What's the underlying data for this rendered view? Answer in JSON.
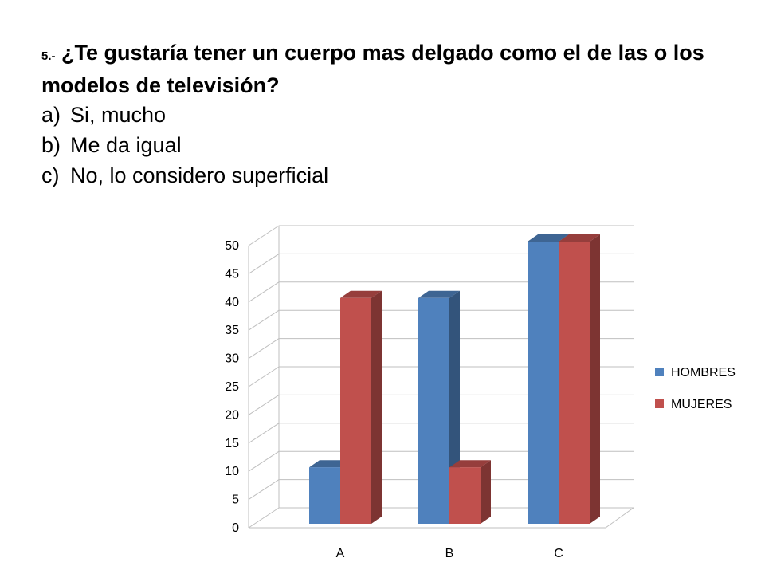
{
  "question": {
    "number": "5.-",
    "text": "¿Te gustaría tener un cuerpo mas delgado como el de las o los modelos de televisión?",
    "options": [
      {
        "letter": "a)",
        "text": "Si, mucho"
      },
      {
        "letter": "b)",
        "text": "Me da igual"
      },
      {
        "letter": "c)",
        "text": "No, lo considero superficial"
      }
    ]
  },
  "chart_data": {
    "type": "bar",
    "style": "3d-clustered",
    "categories": [
      "A",
      "B",
      "C"
    ],
    "series": [
      {
        "name": "HOMBRES",
        "values": [
          10,
          40,
          50
        ],
        "color": "#4F81BD"
      },
      {
        "name": "MUJERES",
        "values": [
          40,
          10,
          50
        ],
        "color": "#C0504D"
      }
    ],
    "ylim": [
      0,
      50
    ],
    "yticks": [
      0,
      5,
      10,
      15,
      20,
      25,
      30,
      35,
      40,
      45,
      50
    ],
    "grid": true,
    "legend": "right"
  }
}
